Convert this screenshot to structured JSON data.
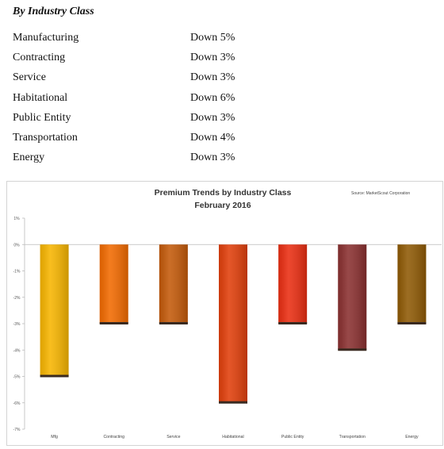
{
  "section": {
    "heading": "By Industry Class",
    "rows": [
      {
        "name": "Manufacturing",
        "value": "Down 5%"
      },
      {
        "name": "Contracting",
        "value": "Down 3%"
      },
      {
        "name": "Service",
        "value": "Down 3%"
      },
      {
        "name": "Habitational",
        "value": "Down 6%"
      },
      {
        "name": "Public Entity",
        "value": "Down 3%"
      },
      {
        "name": "Transportation",
        "value": "Down 4%"
      },
      {
        "name": "Energy",
        "value": "Down 3%"
      }
    ]
  },
  "chart_data": {
    "type": "bar",
    "title": "Premium Trends by Industry Class",
    "subtitle": "February 2016",
    "source": "Source: MarketScout Corporation",
    "categories": [
      "Mfg",
      "Contracting",
      "Service",
      "Habitational",
      "Public Entity",
      "Transportation",
      "Energy"
    ],
    "values": [
      -5,
      -3,
      -3,
      -6,
      -3,
      -4,
      -3
    ],
    "colors": [
      "#f7b500",
      "#f26a00",
      "#c45a0a",
      "#e13f0b",
      "#ea2e12",
      "#8a3030",
      "#8f5a05"
    ],
    "ylim": [
      -7,
      1
    ],
    "yticks": [
      "1%",
      "0%",
      "-1%",
      "-2%",
      "-3%",
      "-4%",
      "-5%",
      "-6%",
      "-7%"
    ],
    "grid": false,
    "legend": "none"
  }
}
